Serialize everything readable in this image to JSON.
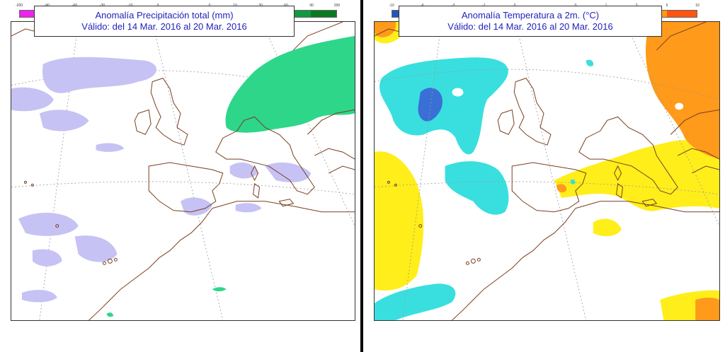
{
  "left_panel": {
    "title_line1": "Anomalía Precipitación total (mm)",
    "title_line2": "Válido: del 14 Mar. 2016 al 20 Mar. 2016",
    "legend_negative": {
      "labels": [
        "-200",
        "-90",
        "-60",
        "-30",
        "-10",
        "0"
      ],
      "colors": [
        "#ee22ee",
        "#9966ee",
        "#8877ee",
        "#a79af2",
        "#c9c2f6"
      ]
    },
    "legend_positive": {
      "labels": [
        "0",
        "10",
        "30",
        "60",
        "90",
        "200"
      ],
      "colors": [
        "#33dd99",
        "#22cc88",
        "#11bb66",
        "#119944",
        "#0a7a22"
      ]
    },
    "colors": {
      "deficit_fill": "#c6c2f4",
      "surplus_fill": "#2ed68a",
      "coast": "#7a3e20"
    }
  },
  "right_panel": {
    "title_line1": "Anomalía Temperatura a 2m. (°C)",
    "title_line2": "Válido: del 14 Mar. 2016 al 20 Mar. 2016",
    "legend_negative": {
      "labels": [
        "-10",
        "-6",
        "-3",
        "-1",
        "0"
      ],
      "colors": [
        "#2255bb",
        "#3377cc",
        "#44aadd",
        "#33dddd"
      ]
    },
    "legend_positive": {
      "labels": [
        "0",
        "1",
        "3",
        "6",
        "10"
      ],
      "colors": [
        "#ffee22",
        "#ffbb11",
        "#ff9911",
        "#ff5511"
      ]
    },
    "colors": {
      "cold_fill": "#39dfdf",
      "very_cold_fill": "#3a6fd6",
      "warm_fill": "#ffee1a",
      "hot_fill": "#ff9a1a",
      "coast": "#7a3e20"
    }
  }
}
